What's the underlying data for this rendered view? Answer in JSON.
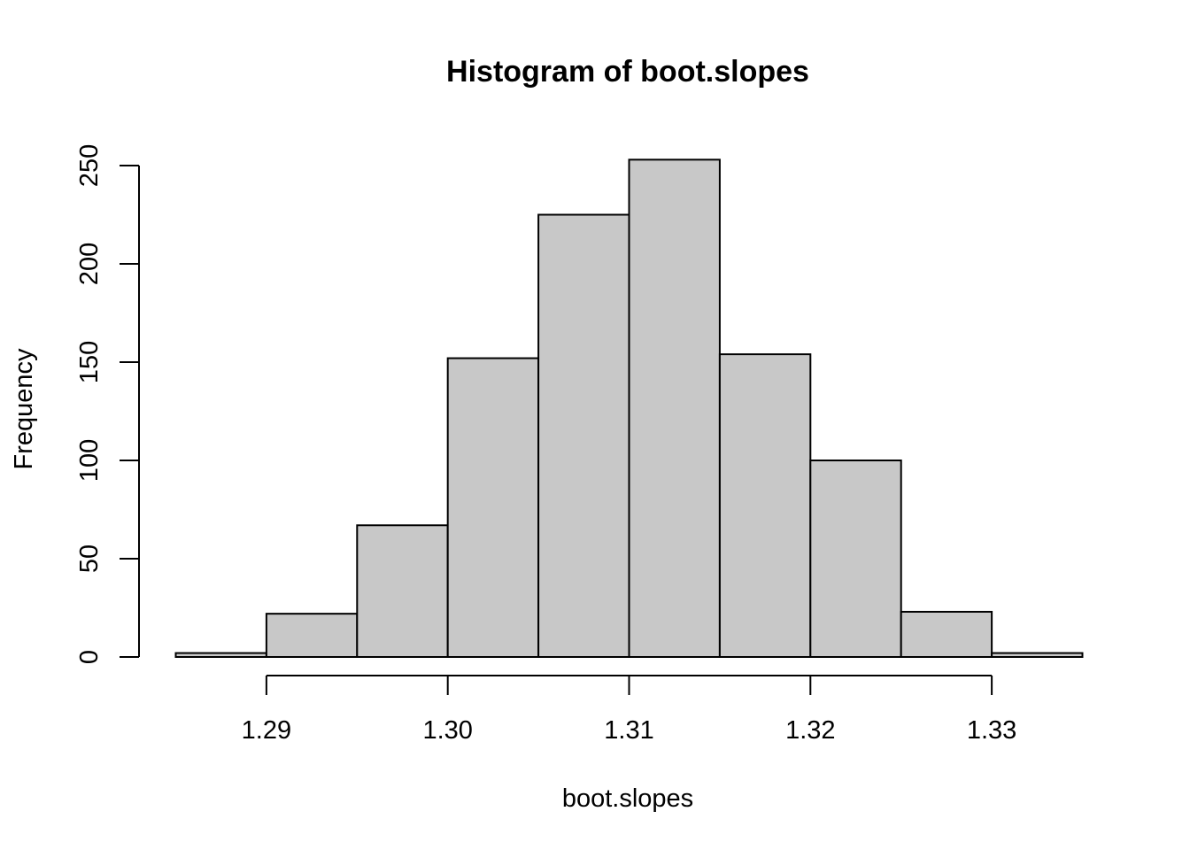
{
  "chart_data": {
    "type": "bar",
    "title": "Histogram of boot.slopes",
    "xlabel": "boot.slopes",
    "ylabel": "Frequency",
    "bins": [
      {
        "start": 1.285,
        "end": 1.29,
        "count": 2
      },
      {
        "start": 1.29,
        "end": 1.295,
        "count": 22
      },
      {
        "start": 1.295,
        "end": 1.3,
        "count": 67
      },
      {
        "start": 1.3,
        "end": 1.305,
        "count": 152
      },
      {
        "start": 1.305,
        "end": 1.31,
        "count": 225
      },
      {
        "start": 1.31,
        "end": 1.315,
        "count": 253
      },
      {
        "start": 1.315,
        "end": 1.32,
        "count": 154
      },
      {
        "start": 1.32,
        "end": 1.325,
        "count": 100
      },
      {
        "start": 1.325,
        "end": 1.33,
        "count": 23
      },
      {
        "start": 1.33,
        "end": 1.335,
        "count": 2
      }
    ],
    "x_ticks": [
      "1.29",
      "1.30",
      "1.31",
      "1.32",
      "1.33"
    ],
    "y_ticks": [
      "0",
      "50",
      "100",
      "150",
      "200",
      "250"
    ],
    "xlim": [
      1.285,
      1.335
    ],
    "ylim": [
      0,
      250
    ],
    "grid": false,
    "bar_color": "#c8c8c8",
    "edge_color": "#000000"
  }
}
